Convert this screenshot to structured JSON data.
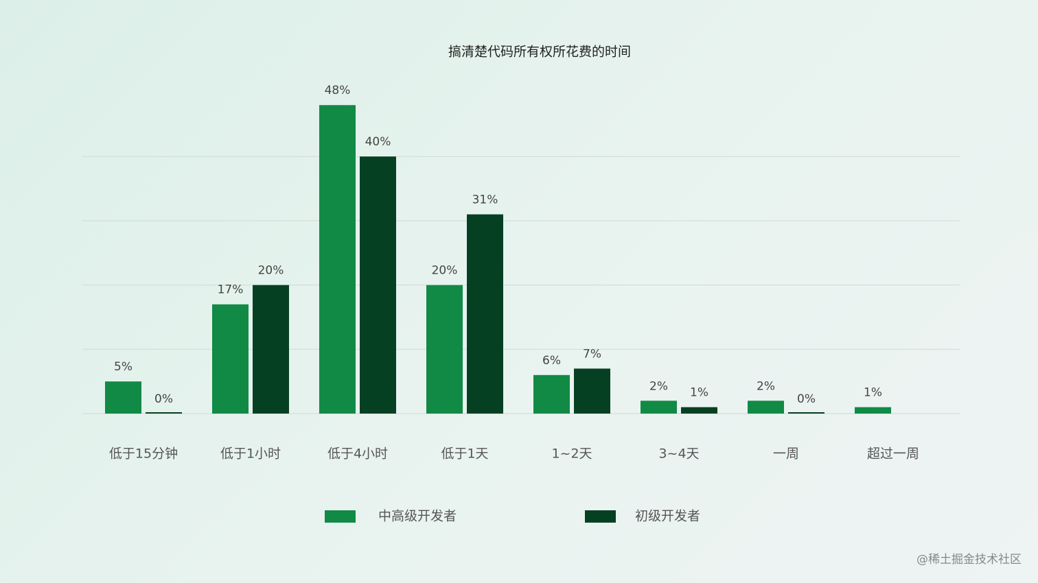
{
  "chart_data": {
    "type": "bar",
    "title": "搞清楚代码所有权所花费的时间",
    "categories": [
      "低于15分钟",
      "低于1小时",
      "低于4小时",
      "低于1天",
      "1~2天",
      "3~4天",
      "一周",
      "超过一周"
    ],
    "series": [
      {
        "name": "中高级开发者",
        "color": "#118a45",
        "values": [
          5,
          17,
          48,
          20,
          6,
          2,
          2,
          1
        ],
        "value_labels": [
          "5%",
          "17%",
          "48%",
          "20%",
          "6%",
          "2%",
          "2%",
          "1%"
        ]
      },
      {
        "name": "初级开发者",
        "color": "#064023",
        "values": [
          0,
          20,
          40,
          31,
          7,
          1,
          0,
          null
        ],
        "value_labels": [
          "0%",
          "20%",
          "40%",
          "31%",
          "7%",
          "1%",
          "0%",
          null
        ]
      }
    ],
    "ylim": [
      0,
      50
    ],
    "yticks": [
      0,
      10,
      20,
      30,
      40
    ],
    "grid": true,
    "legend": "bottom",
    "watermark": "@稀土掘金技术社区"
  }
}
